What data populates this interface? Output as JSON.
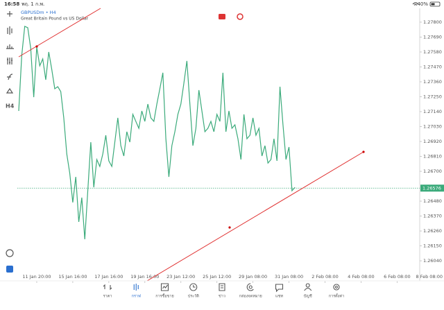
{
  "status_bar": {
    "time": "16:58",
    "date": "พฤ. 1 ก.พ.",
    "battery": "40%"
  },
  "chart_data": {
    "type": "line",
    "title": "GBPUSDm • H4",
    "subtitle": "Great Britain Pound vs US Dollar",
    "color": "#3aaa7a",
    "values": [
      1.27145,
      1.27554,
      1.27769,
      1.27759,
      1.27606,
      1.27247,
      1.27616,
      1.27478,
      1.27529,
      1.27375,
      1.2758,
      1.27452,
      1.27309,
      1.27324,
      1.27288,
      1.27094,
      1.26828,
      1.26685,
      1.2647,
      1.26659,
      1.26327,
      1.26506,
      1.26199,
      1.26557,
      1.26915,
      1.26582,
      1.26787,
      1.26736,
      1.26828,
      1.26966,
      1.26777,
      1.26736,
      1.26915,
      1.27094,
      1.26889,
      1.26813,
      1.26992,
      1.26915,
      1.2712,
      1.27068,
      1.27017,
      1.27145,
      1.27068,
      1.27196,
      1.27094,
      1.27068,
      1.27196,
      1.27309,
      1.27427,
      1.2694,
      1.26659,
      1.26889,
      1.26992,
      1.2712,
      1.27196,
      1.2735,
      1.27514,
      1.27196,
      1.26889,
      1.27017,
      1.27299,
      1.27145,
      1.26992,
      1.27017,
      1.27068,
      1.26992,
      1.2712,
      1.27068,
      1.27427,
      1.26992,
      1.27145,
      1.27017,
      1.27043,
      1.2694,
      1.26787,
      1.2712,
      1.2694,
      1.26966,
      1.27094,
      1.26966,
      1.27017,
      1.26813,
      1.26889,
      1.26761,
      1.26787,
      1.2694,
      1.26777,
      1.27324,
      1.27043,
      1.26787,
      1.26879,
      1.26557,
      1.26582
    ],
    "xlim": [
      0,
      134
    ],
    "xticks": [
      {
        "value": 6,
        "label": "11 Jan 20:00"
      },
      {
        "value": 18,
        "label": "15 Jan 16:00"
      },
      {
        "value": 30,
        "label": "17 Jan 16:00"
      },
      {
        "value": 42,
        "label": "19 Jan 16:00"
      },
      {
        "value": 54,
        "label": "23 Jan 12:00"
      },
      {
        "value": 66,
        "label": "25 Jan 12:00"
      },
      {
        "value": 78,
        "label": "29 Jan 08:00"
      },
      {
        "value": 90,
        "label": "31 Jan 08:00"
      },
      {
        "value": 102,
        "label": "2 Feb 08:00"
      },
      {
        "value": 114,
        "label": "4 Feb 08:00"
      },
      {
        "value": 126,
        "label": "6 Feb 08:00"
      },
      {
        "value": 138,
        "label": "8 Feb 08:00"
      }
    ],
    "ylim": [
      1.25892,
      1.27902
    ],
    "yticks": [
      {
        "value": 1.278,
        "label": "1.27800"
      },
      {
        "value": 1.2769,
        "label": "1.27690"
      },
      {
        "value": 1.2758,
        "label": "1.27580"
      },
      {
        "value": 1.2747,
        "label": "1.27470"
      },
      {
        "value": 1.2736,
        "label": "1.27360"
      },
      {
        "value": 1.2725,
        "label": "1.27250"
      },
      {
        "value": 1.2714,
        "label": "1.27140"
      },
      {
        "value": 1.2703,
        "label": "1.27030"
      },
      {
        "value": 1.2692,
        "label": "1.26920"
      },
      {
        "value": 1.2681,
        "label": "1.26810"
      },
      {
        "value": 1.267,
        "label": "1.26700"
      },
      {
        "value": 1.2648,
        "label": "1.26480"
      },
      {
        "value": 1.2637,
        "label": "1.26370"
      },
      {
        "value": 1.2626,
        "label": "1.26260"
      },
      {
        "value": 1.2615,
        "label": "1.26150"
      },
      {
        "value": 1.2604,
        "label": "1.26040"
      }
    ],
    "current_price": 1.26576
  },
  "left_toolbar": {
    "timeframe": "H4"
  },
  "nav": {
    "active": 1,
    "items": [
      "ราคา",
      "กราฟ",
      "การซื้อขาย",
      "ประวัติ",
      "ข่าว",
      "กล่องจดหมาย",
      "แชท",
      "บัญชี",
      "การตั้งค่า"
    ]
  }
}
